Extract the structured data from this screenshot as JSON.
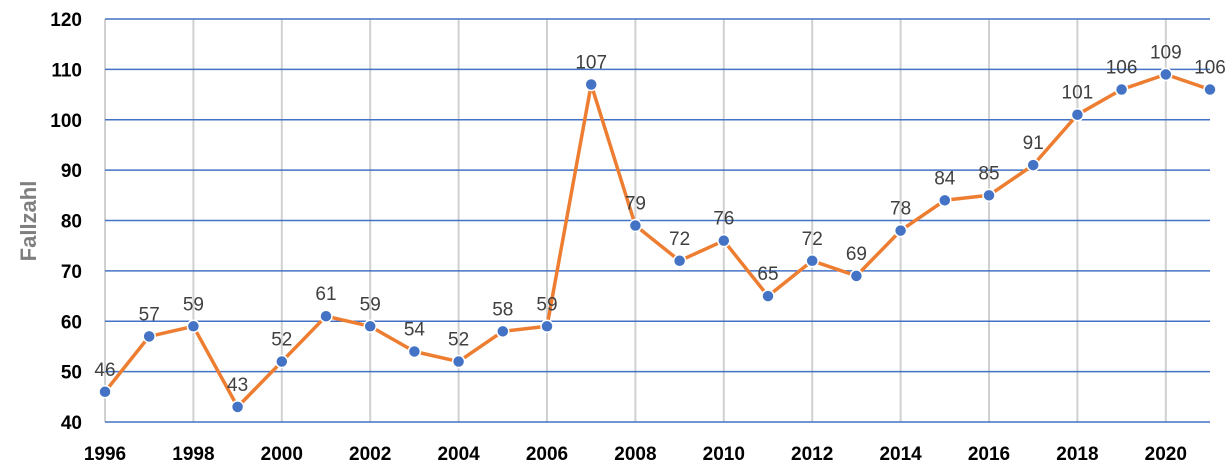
{
  "chart_data": {
    "type": "line",
    "title": "",
    "xlabel": "",
    "ylabel": "Fallzahl",
    "x": [
      1996,
      1997,
      1998,
      1999,
      2000,
      2001,
      2002,
      2003,
      2004,
      2005,
      2006,
      2007,
      2008,
      2009,
      2010,
      2011,
      2012,
      2013,
      2014,
      2015,
      2016,
      2017,
      2018,
      2019,
      2020,
      2021
    ],
    "series": [
      {
        "values": [
          46,
          57,
          59,
          43,
          52,
          61,
          59,
          54,
          52,
          58,
          59,
          107,
          79,
          72,
          76,
          65,
          72,
          69,
          78,
          84,
          85,
          91,
          101,
          106,
          109,
          106
        ]
      }
    ],
    "xlim": [
      1996,
      2021
    ],
    "ylim": [
      40,
      120
    ],
    "x_ticks": [
      "1996",
      "1998",
      "2000",
      "2002",
      "2004",
      "2006",
      "2008",
      "2010",
      "2012",
      "2014",
      "2016",
      "2018",
      "2020"
    ],
    "y_ticks": [
      "40",
      "50",
      "60",
      "70",
      "80",
      "90",
      "100",
      "110",
      "120"
    ],
    "grid": true,
    "legend": "none",
    "data_labels": true,
    "colors": {
      "line": "#ed7d31",
      "marker_fill": "#4472c4",
      "marker_stroke": "#ffffff",
      "h_grid": "#4472c4",
      "v_grid": "#d0d0d0",
      "y_title": "#7f7f7f",
      "data_label": "#404040",
      "tick_label": "#000000"
    }
  }
}
